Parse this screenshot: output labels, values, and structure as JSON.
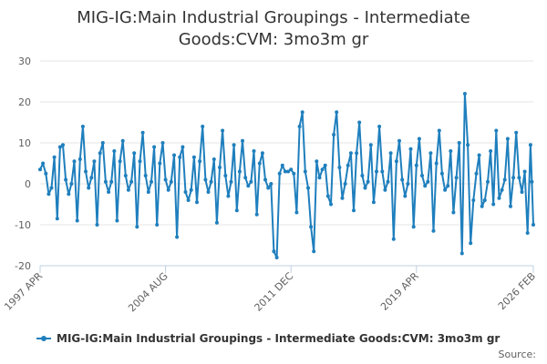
{
  "chart_data": {
    "type": "line",
    "title_lines": [
      "MIG-IG:Main Industrial Groupings - Intermediate",
      "Goods:CVM: 3mo3m gr"
    ],
    "xlabel": "",
    "ylabel": "",
    "ylim": [
      -20,
      30
    ],
    "y_ticks": [
      -20,
      -10,
      0,
      10,
      20,
      30
    ],
    "x_range": [
      "1997-04",
      "2026-02"
    ],
    "x_tick_labels": [
      "1997 APR",
      "2004 AUG",
      "2011 DEC",
      "2019 APR",
      "2026 FEB"
    ],
    "x_tick_dates": [
      "1997-04",
      "2004-08",
      "2011-12",
      "2019-04",
      "2026-02"
    ],
    "grid": "horizontal",
    "legend_position": "bottom",
    "series": [
      {
        "name": "MIG-IG:Main Industrial Groupings - Intermediate Goods:CVM: 3mo3m gr",
        "color": "#1f7fbd",
        "marker": "circle",
        "points": [
          [
            "1997-04",
            3.5
          ],
          [
            "1997-06",
            5.0
          ],
          [
            "1997-08",
            2.5
          ],
          [
            "1997-10",
            -2.5
          ],
          [
            "1997-12",
            -1.0
          ],
          [
            "1998-02",
            6.5
          ],
          [
            "1998-04",
            -8.5
          ],
          [
            "1998-06",
            9.0
          ],
          [
            "1998-08",
            9.5
          ],
          [
            "1998-10",
            1.0
          ],
          [
            "1998-12",
            -2.5
          ],
          [
            "1999-02",
            0.0
          ],
          [
            "1999-04",
            5.5
          ],
          [
            "1999-06",
            -9.0
          ],
          [
            "1999-08",
            6.0
          ],
          [
            "1999-10",
            14.0
          ],
          [
            "1999-12",
            3.0
          ],
          [
            "2000-02",
            -1.0
          ],
          [
            "2000-04",
            1.5
          ],
          [
            "2000-06",
            5.5
          ],
          [
            "2000-08",
            -10.0
          ],
          [
            "2000-10",
            7.5
          ],
          [
            "2000-12",
            10.0
          ],
          [
            "2001-02",
            0.5
          ],
          [
            "2001-04",
            -2.0
          ],
          [
            "2001-06",
            0.5
          ],
          [
            "2001-08",
            8.0
          ],
          [
            "2001-10",
            -9.0
          ],
          [
            "2001-12",
            5.5
          ],
          [
            "2002-02",
            10.5
          ],
          [
            "2002-04",
            2.0
          ],
          [
            "2002-06",
            -1.5
          ],
          [
            "2002-08",
            0.5
          ],
          [
            "2002-10",
            7.5
          ],
          [
            "2002-12",
            -10.5
          ],
          [
            "2003-02",
            5.5
          ],
          [
            "2003-04",
            12.5
          ],
          [
            "2003-06",
            2.0
          ],
          [
            "2003-08",
            -2.0
          ],
          [
            "2003-10",
            0.5
          ],
          [
            "2003-12",
            9.0
          ],
          [
            "2004-02",
            -10.0
          ],
          [
            "2004-04",
            5.0
          ],
          [
            "2004-06",
            10.0
          ],
          [
            "2004-08",
            1.0
          ],
          [
            "2004-10",
            -1.5
          ],
          [
            "2004-12",
            0.5
          ],
          [
            "2005-02",
            7.0
          ],
          [
            "2005-04",
            -13.0
          ],
          [
            "2005-06",
            6.5
          ],
          [
            "2005-08",
            9.0
          ],
          [
            "2005-10",
            -2.0
          ],
          [
            "2005-12",
            -4.0
          ],
          [
            "2006-02",
            -1.5
          ],
          [
            "2006-04",
            6.5
          ],
          [
            "2006-06",
            -4.5
          ],
          [
            "2006-08",
            5.5
          ],
          [
            "2006-10",
            14.0
          ],
          [
            "2006-12",
            1.0
          ],
          [
            "2007-02",
            -2.0
          ],
          [
            "2007-04",
            0.5
          ],
          [
            "2007-06",
            6.0
          ],
          [
            "2007-08",
            -9.5
          ],
          [
            "2007-10",
            4.0
          ],
          [
            "2007-12",
            13.0
          ],
          [
            "2008-02",
            2.0
          ],
          [
            "2008-04",
            -3.0
          ],
          [
            "2008-06",
            0.5
          ],
          [
            "2008-08",
            9.5
          ],
          [
            "2008-10",
            -6.5
          ],
          [
            "2008-12",
            3.0
          ],
          [
            "2009-02",
            10.5
          ],
          [
            "2009-04",
            1.5
          ],
          [
            "2009-06",
            -0.5
          ],
          [
            "2009-08",
            0.5
          ],
          [
            "2009-10",
            8.0
          ],
          [
            "2009-12",
            -7.5
          ],
          [
            "2010-02",
            5.0
          ],
          [
            "2010-04",
            7.5
          ],
          [
            "2010-06",
            1.0
          ],
          [
            "2010-08",
            -1.0
          ],
          [
            "2010-10",
            0.0
          ],
          [
            "2010-12",
            -16.5
          ],
          [
            "2011-02",
            -18.0
          ],
          [
            "2011-04",
            2.5
          ],
          [
            "2011-06",
            4.5
          ],
          [
            "2011-08",
            3.0
          ],
          [
            "2011-10",
            3.0
          ],
          [
            "2011-12",
            3.5
          ],
          [
            "2012-02",
            2.5
          ],
          [
            "2012-04",
            -7.0
          ],
          [
            "2012-06",
            14.0
          ],
          [
            "2012-08",
            17.5
          ],
          [
            "2012-10",
            3.0
          ],
          [
            "2012-12",
            -1.0
          ],
          [
            "2013-02",
            -10.5
          ],
          [
            "2013-04",
            -16.5
          ],
          [
            "2013-06",
            5.5
          ],
          [
            "2013-08",
            1.5
          ],
          [
            "2013-10",
            3.5
          ],
          [
            "2013-12",
            4.5
          ],
          [
            "2014-02",
            -3.0
          ],
          [
            "2014-04",
            -5.0
          ],
          [
            "2014-06",
            12.0
          ],
          [
            "2014-08",
            17.5
          ],
          [
            "2014-10",
            4.0
          ],
          [
            "2014-12",
            -3.5
          ],
          [
            "2015-02",
            0.0
          ],
          [
            "2015-04",
            4.5
          ],
          [
            "2015-06",
            7.5
          ],
          [
            "2015-08",
            -6.5
          ],
          [
            "2015-10",
            7.5
          ],
          [
            "2015-12",
            15.0
          ],
          [
            "2016-02",
            2.0
          ],
          [
            "2016-04",
            -1.0
          ],
          [
            "2016-06",
            0.5
          ],
          [
            "2016-08",
            9.5
          ],
          [
            "2016-10",
            -4.5
          ],
          [
            "2016-12",
            3.0
          ],
          [
            "2017-02",
            14.0
          ],
          [
            "2017-04",
            3.0
          ],
          [
            "2017-06",
            -1.5
          ],
          [
            "2017-08",
            0.5
          ],
          [
            "2017-10",
            7.5
          ],
          [
            "2017-12",
            -13.5
          ],
          [
            "2018-02",
            5.5
          ],
          [
            "2018-04",
            10.5
          ],
          [
            "2018-06",
            1.0
          ],
          [
            "2018-08",
            -3.0
          ],
          [
            "2018-10",
            0.0
          ],
          [
            "2018-12",
            8.5
          ],
          [
            "2019-02",
            -10.5
          ],
          [
            "2019-04",
            4.5
          ],
          [
            "2019-06",
            11.0
          ],
          [
            "2019-08",
            2.0
          ],
          [
            "2019-10",
            -0.5
          ],
          [
            "2019-12",
            0.5
          ],
          [
            "2020-02",
            7.5
          ],
          [
            "2020-04",
            -11.5
          ],
          [
            "2020-06",
            5.0
          ],
          [
            "2020-08",
            13.0
          ],
          [
            "2020-10",
            2.5
          ],
          [
            "2020-12",
            -1.5
          ],
          [
            "2021-02",
            -0.5
          ],
          [
            "2021-04",
            8.0
          ],
          [
            "2021-06",
            -7.0
          ],
          [
            "2021-08",
            1.5
          ],
          [
            "2021-10",
            10.0
          ],
          [
            "2021-12",
            -17.0
          ],
          [
            "2022-02",
            22.0
          ],
          [
            "2022-04",
            9.5
          ],
          [
            "2022-06",
            -14.5
          ],
          [
            "2022-08",
            -4.0
          ],
          [
            "2022-10",
            2.5
          ],
          [
            "2022-12",
            7.0
          ],
          [
            "2023-02",
            -5.5
          ],
          [
            "2023-04",
            -4.0
          ],
          [
            "2023-06",
            0.5
          ],
          [
            "2023-08",
            8.0
          ],
          [
            "2023-10",
            -5.0
          ],
          [
            "2023-12",
            13.0
          ],
          [
            "2024-02",
            -3.5
          ],
          [
            "2024-04",
            -1.5
          ],
          [
            "2024-06",
            1.0
          ],
          [
            "2024-08",
            11.0
          ],
          [
            "2024-10",
            -5.5
          ],
          [
            "2024-12",
            1.5
          ],
          [
            "2025-02",
            12.5
          ],
          [
            "2025-04",
            1.5
          ],
          [
            "2025-06",
            -2.0
          ],
          [
            "2025-08",
            3.0
          ],
          [
            "2025-10",
            -12.0
          ],
          [
            "2025-12",
            9.5
          ],
          [
            "2026-01",
            0.5
          ],
          [
            "2026-02",
            -10.0
          ]
        ]
      }
    ],
    "legend_label": "MIG-IG:Main Industrial Groupings - Intermediate Goods:CVM: 3mo3m gr",
    "source_label": "Source:"
  },
  "colors": {
    "line": "#1f7fbd",
    "grid": "#e6e6e6",
    "axis": "#c0d0e0"
  }
}
